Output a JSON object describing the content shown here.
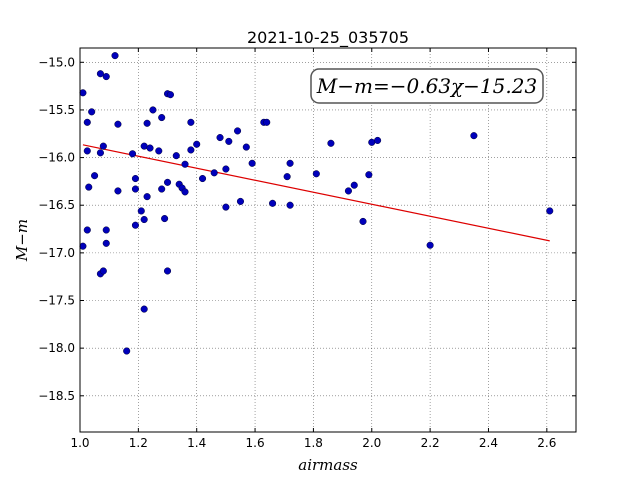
{
  "chart_data": {
    "type": "scatter",
    "title": "2021-10-25_035705",
    "xlabel": "airmass",
    "ylabel": "M−m",
    "xlim": [
      1.0,
      2.7
    ],
    "ylim": [
      -18.88,
      -14.85
    ],
    "y_inverted": true,
    "grid": true,
    "x_ticks": [
      1.0,
      1.2,
      1.4,
      1.6,
      1.8,
      2.0,
      2.2,
      2.4,
      2.6
    ],
    "x_tick_labels": [
      "1.0",
      "1.2",
      "1.4",
      "1.6",
      "1.8",
      "2.0",
      "2.2",
      "2.4",
      "2.6"
    ],
    "y_ticks": [
      -15.0,
      -15.5,
      -16.0,
      -16.5,
      -17.0,
      -17.5,
      -18.0,
      -18.5
    ],
    "y_tick_labels": [
      "−15.0",
      "−15.5",
      "−16.0",
      "−16.5",
      "−17.0",
      "−17.5",
      "−18.0",
      "−18.5"
    ],
    "annotation": "M−m=−0.63χ−15.23",
    "fit": {
      "slope": -0.63,
      "intercept": -15.23,
      "x_range": [
        1.01,
        2.61
      ],
      "color": "#dd0000"
    },
    "marker_color": "#0000bb",
    "points": [
      [
        1.01,
        -15.32
      ],
      [
        1.025,
        -15.63
      ],
      [
        1.04,
        -15.52
      ],
      [
        1.07,
        -15.12
      ],
      [
        1.09,
        -15.15
      ],
      [
        1.12,
        -14.93
      ],
      [
        1.13,
        -15.65
      ],
      [
        1.25,
        -15.5
      ],
      [
        1.28,
        -15.58
      ],
      [
        1.3,
        -15.33
      ],
      [
        1.31,
        -15.34
      ],
      [
        1.38,
        -15.63
      ],
      [
        1.025,
        -15.93
      ],
      [
        1.07,
        -15.95
      ],
      [
        1.08,
        -15.88
      ],
      [
        1.18,
        -15.96
      ],
      [
        1.22,
        -15.88
      ],
      [
        1.23,
        -15.64
      ],
      [
        1.24,
        -15.9
      ],
      [
        1.27,
        -15.93
      ],
      [
        1.33,
        -15.98
      ],
      [
        1.36,
        -16.07
      ],
      [
        1.38,
        -15.92
      ],
      [
        1.4,
        -15.86
      ],
      [
        1.48,
        -15.79
      ],
      [
        1.51,
        -15.83
      ],
      [
        1.54,
        -15.72
      ],
      [
        1.57,
        -15.89
      ],
      [
        1.59,
        -16.06
      ],
      [
        1.63,
        -15.63
      ],
      [
        1.64,
        -15.63
      ],
      [
        1.72,
        -16.06
      ],
      [
        1.86,
        -15.85
      ],
      [
        2.0,
        -15.84
      ],
      [
        2.02,
        -15.82
      ],
      [
        2.35,
        -15.77
      ],
      [
        1.03,
        -16.31
      ],
      [
        1.05,
        -16.19
      ],
      [
        1.13,
        -16.35
      ],
      [
        1.19,
        -16.22
      ],
      [
        1.19,
        -16.33
      ],
      [
        1.23,
        -16.41
      ],
      [
        1.28,
        -16.33
      ],
      [
        1.3,
        -16.26
      ],
      [
        1.34,
        -16.28
      ],
      [
        1.35,
        -16.32
      ],
      [
        1.36,
        -16.36
      ],
      [
        1.42,
        -16.22
      ],
      [
        1.46,
        -16.16
      ],
      [
        1.5,
        -16.12
      ],
      [
        1.5,
        -16.52
      ],
      [
        1.55,
        -16.46
      ],
      [
        1.66,
        -16.48
      ],
      [
        1.71,
        -16.2
      ],
      [
        1.72,
        -16.5
      ],
      [
        1.81,
        -16.17
      ],
      [
        1.92,
        -16.35
      ],
      [
        1.94,
        -16.29
      ],
      [
        1.97,
        -16.67
      ],
      [
        1.99,
        -16.18
      ],
      [
        2.61,
        -16.56
      ],
      [
        1.01,
        -16.93
      ],
      [
        1.025,
        -16.76
      ],
      [
        1.07,
        -17.22
      ],
      [
        1.08,
        -17.19
      ],
      [
        1.09,
        -16.76
      ],
      [
        1.09,
        -16.9
      ],
      [
        1.19,
        -16.71
      ],
      [
        1.21,
        -16.56
      ],
      [
        1.22,
        -16.65
      ],
      [
        1.29,
        -16.64
      ],
      [
        1.3,
        -17.19
      ],
      [
        1.22,
        -17.59
      ],
      [
        1.16,
        -18.03
      ],
      [
        2.2,
        -16.92
      ]
    ]
  }
}
